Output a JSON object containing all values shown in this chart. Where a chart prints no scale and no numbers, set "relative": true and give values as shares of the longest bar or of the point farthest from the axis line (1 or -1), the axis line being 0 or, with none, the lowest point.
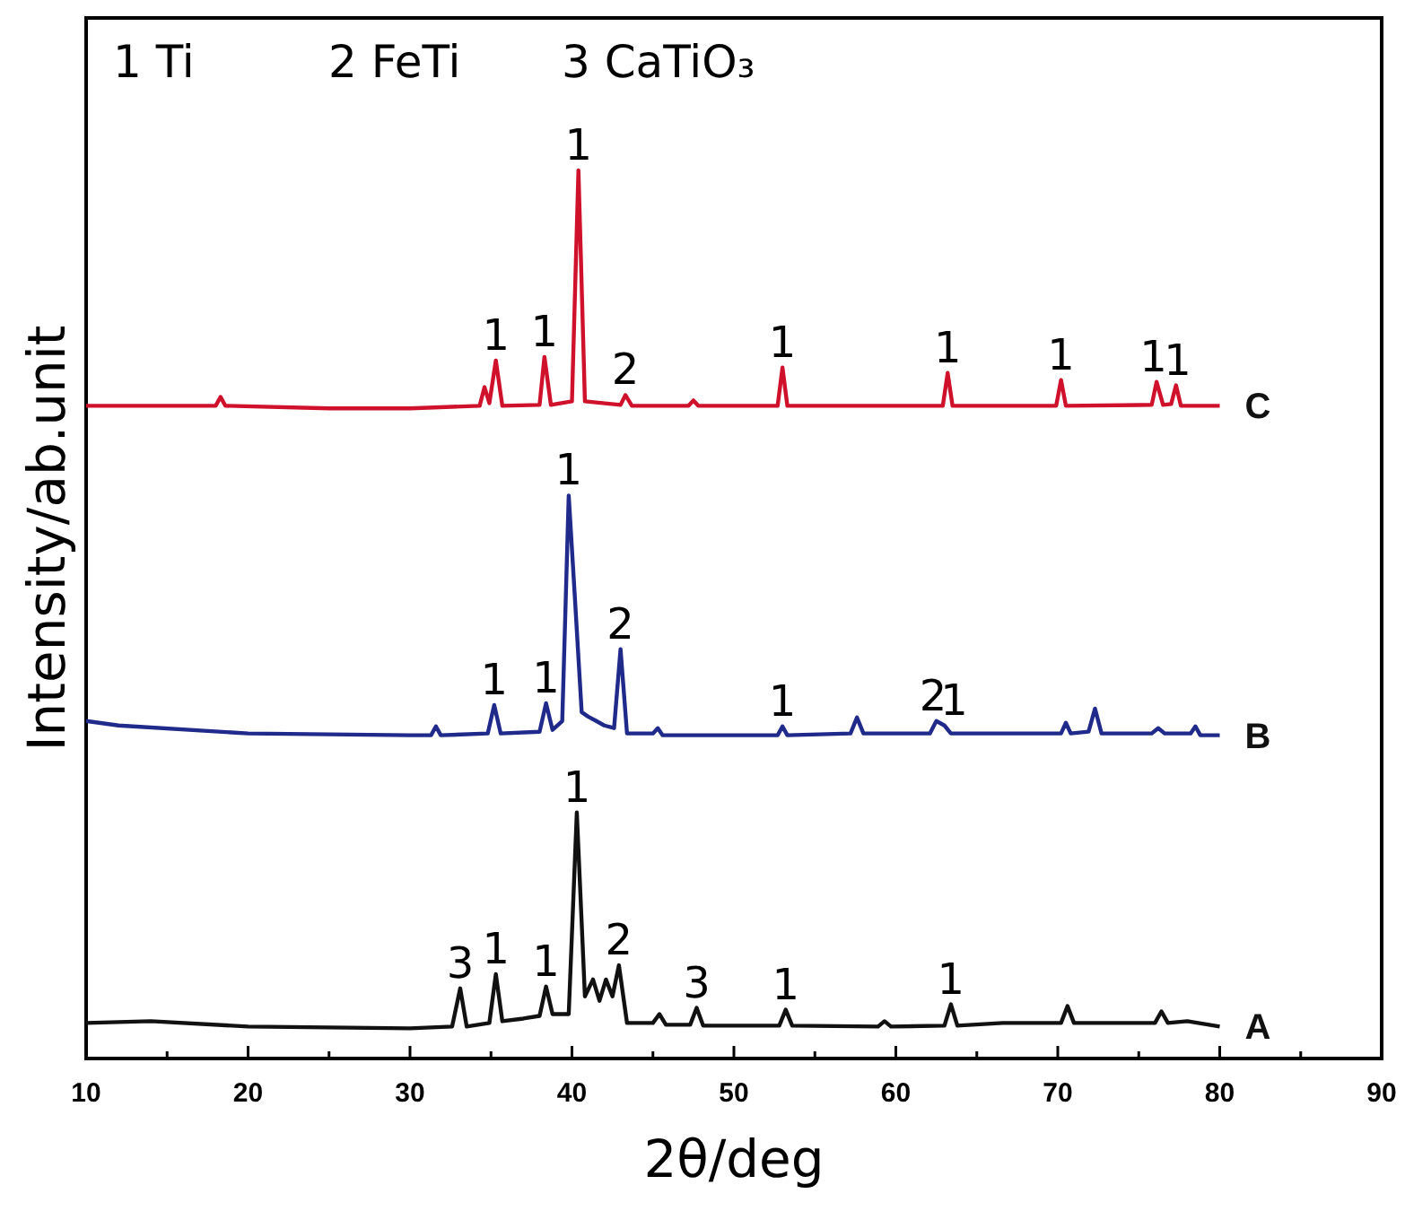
{
  "chart_data": {
    "type": "line",
    "relative": true,
    "xlabel": "2θ/deg",
    "ylabel": "Intensity/ab.unit",
    "xlim": [
      10,
      90
    ],
    "xticks": [
      10,
      {
        "value": 15,
        "label": null
      },
      20,
      {
        "value": 25,
        "label": null
      },
      30,
      {
        "value": 35,
        "label": null
      },
      40,
      {
        "value": 45,
        "label": null
      },
      50,
      {
        "value": 55,
        "label": null
      },
      60,
      {
        "value": 65,
        "label": null
      },
      70,
      {
        "value": 75,
        "label": null
      },
      80,
      {
        "value": 85,
        "label": null
      },
      90
    ],
    "grid": false,
    "marker": "none",
    "line_style": "solid",
    "tick_labels": "x",
    "series": [
      {
        "name": "A",
        "color": "#111111",
        "x": [
          10,
          14,
          20,
          25,
          30,
          32.6,
          33.1,
          33.5,
          34.9,
          35.3,
          35.7,
          37,
          38,
          38.4,
          38.8,
          39.8,
          40.3,
          40.8,
          41.3,
          41.7,
          42.1,
          42.5,
          42.9,
          43.4,
          45,
          45.4,
          45.8,
          47.3,
          47.7,
          48.1,
          52.8,
          53.2,
          53.6,
          58.9,
          59.3,
          59.7,
          63,
          63.4,
          63.8,
          66.6,
          70.2,
          70.6,
          71,
          76,
          76.4,
          76.8,
          78,
          80
        ],
        "values": [
          0.04,
          0.042,
          0.036,
          0.035,
          0.034,
          0.036,
          0.079,
          0.036,
          0.04,
          0.095,
          0.042,
          0.045,
          0.048,
          0.081,
          0.05,
          0.05,
          0.277,
          0.07,
          0.089,
          0.065,
          0.089,
          0.07,
          0.105,
          0.04,
          0.04,
          0.05,
          0.038,
          0.038,
          0.057,
          0.037,
          0.037,
          0.055,
          0.037,
          0.036,
          0.042,
          0.036,
          0.037,
          0.061,
          0.037,
          0.04,
          0.04,
          0.059,
          0.04,
          0.04,
          0.053,
          0.04,
          0.042,
          0.036
        ]
      },
      {
        "name": "B",
        "color": "#1f2a8a",
        "x": [
          10,
          12,
          20,
          30,
          31.3,
          31.6,
          31.9,
          34.8,
          35.2,
          35.6,
          38,
          38.4,
          38.8,
          39.4,
          39.8,
          40.2,
          40.6,
          41,
          41.5,
          42,
          42.6,
          43,
          43.4,
          45,
          45.3,
          45.6,
          52.7,
          53,
          53.3,
          57.2,
          57.6,
          58,
          62.1,
          62.5,
          63,
          63.4,
          70.2,
          70.5,
          70.8,
          71.9,
          72.3,
          72.7,
          75.8,
          76.2,
          76.6,
          78.2,
          78.5,
          78.8,
          80
        ],
        "values": [
          0.38,
          0.375,
          0.366,
          0.364,
          0.364,
          0.374,
          0.364,
          0.366,
          0.398,
          0.366,
          0.368,
          0.4,
          0.37,
          0.38,
          0.634,
          0.513,
          0.39,
          0.385,
          0.38,
          0.375,
          0.372,
          0.461,
          0.366,
          0.366,
          0.372,
          0.364,
          0.364,
          0.374,
          0.364,
          0.366,
          0.384,
          0.366,
          0.366,
          0.38,
          0.375,
          0.366,
          0.366,
          0.378,
          0.366,
          0.368,
          0.394,
          0.366,
          0.366,
          0.372,
          0.366,
          0.366,
          0.374,
          0.364,
          0.364
        ]
      },
      {
        "name": "C",
        "color": "#d0112b",
        "x": [
          10,
          15,
          18,
          18.3,
          18.6,
          25,
          30,
          34.3,
          34.6,
          34.9,
          35.3,
          35.7,
          38,
          38.3,
          38.7,
          40,
          40.4,
          40.8,
          43,
          43.3,
          43.7,
          47.2,
          47.5,
          47.8,
          52.7,
          53,
          53.3,
          62.9,
          63.2,
          63.5,
          69.9,
          70.2,
          70.5,
          75.8,
          76.1,
          76.5,
          77,
          77.3,
          77.6,
          80
        ],
        "values": [
          0.735,
          0.735,
          0.735,
          0.745,
          0.735,
          0.732,
          0.732,
          0.735,
          0.756,
          0.738,
          0.786,
          0.735,
          0.736,
          0.79,
          0.736,
          0.74,
          1.0,
          0.74,
          0.736,
          0.747,
          0.735,
          0.735,
          0.741,
          0.735,
          0.735,
          0.778,
          0.735,
          0.735,
          0.772,
          0.735,
          0.735,
          0.764,
          0.735,
          0.736,
          0.762,
          0.736,
          0.737,
          0.758,
          0.735,
          0.735
        ]
      }
    ],
    "annotations": [
      "1 Ti",
      "2 FeTi",
      "3 CaTiO₃",
      {
        "text": "3",
        "x": 33.1,
        "y": 0.079
      },
      {
        "text": "1",
        "x": 35.3,
        "y": 0.095
      },
      {
        "text": "1",
        "x": 38.4,
        "y": 0.081
      },
      {
        "text": "1",
        "x": 40.3,
        "y": 0.277
      },
      {
        "text": "2",
        "x": 42.9,
        "y": 0.105
      },
      {
        "text": "3",
        "x": 47.7,
        "y": 0.057
      },
      {
        "text": "1",
        "x": 53.2,
        "y": 0.055
      },
      {
        "text": "1",
        "x": 63.4,
        "y": 0.061
      },
      {
        "text": "1",
        "x": 35.2,
        "y": 0.398
      },
      {
        "text": "1",
        "x": 38.4,
        "y": 0.4
      },
      {
        "text": "1",
        "x": 39.8,
        "y": 0.634
      },
      {
        "text": "2",
        "x": 43.0,
        "y": 0.461
      },
      {
        "text": "1",
        "x": 53.0,
        "y": 0.374
      },
      {
        "text": "2",
        "x": 62.3,
        "y": 0.38
      },
      {
        "text": "1",
        "x": 63.6,
        "y": 0.375
      },
      {
        "text": "1",
        "x": 35.3,
        "y": 0.786
      },
      {
        "text": "1",
        "x": 38.3,
        "y": 0.79
      },
      {
        "text": "1",
        "x": 40.4,
        "y": 1.0
      },
      {
        "text": "2",
        "x": 43.3,
        "y": 0.747
      },
      {
        "text": "1",
        "x": 53.0,
        "y": 0.778
      },
      {
        "text": "1",
        "x": 63.2,
        "y": 0.772
      },
      {
        "text": "1",
        "x": 70.2,
        "y": 0.764
      },
      {
        "text": "1",
        "x": 75.9,
        "y": 0.762
      },
      {
        "text": "1",
        "x": 77.4,
        "y": 0.758
      }
    ]
  }
}
